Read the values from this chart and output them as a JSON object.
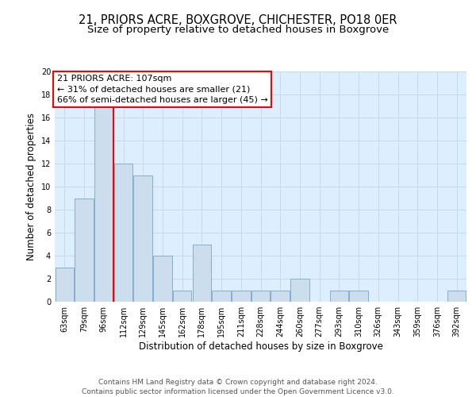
{
  "title1": "21, PRIORS ACRE, BOXGROVE, CHICHESTER, PO18 0ER",
  "title2": "Size of property relative to detached houses in Boxgrove",
  "xlabel": "Distribution of detached houses by size in Boxgrove",
  "ylabel": "Number of detached properties",
  "categories": [
    "63sqm",
    "79sqm",
    "96sqm",
    "112sqm",
    "129sqm",
    "145sqm",
    "162sqm",
    "178sqm",
    "195sqm",
    "211sqm",
    "228sqm",
    "244sqm",
    "260sqm",
    "277sqm",
    "293sqm",
    "310sqm",
    "326sqm",
    "343sqm",
    "359sqm",
    "376sqm",
    "392sqm"
  ],
  "values": [
    3,
    9,
    17,
    12,
    11,
    4,
    1,
    5,
    1,
    1,
    1,
    1,
    2,
    0,
    1,
    1,
    0,
    0,
    0,
    0,
    1
  ],
  "bar_color": "#ccdded",
  "bar_edge_color": "#85aece",
  "vline_index": 2.5,
  "vline_color": "red",
  "annotation_text": "21 PRIORS ACRE: 107sqm\n← 31% of detached houses are smaller (21)\n66% of semi-detached houses are larger (45) →",
  "annotation_box_color": "white",
  "annotation_box_edge_color": "red",
  "ylim": [
    0,
    20
  ],
  "yticks": [
    0,
    2,
    4,
    6,
    8,
    10,
    12,
    14,
    16,
    18,
    20
  ],
  "grid_color": "#c8d8e8",
  "background_color": "#ddeeff",
  "footer1": "Contains HM Land Registry data © Crown copyright and database right 2024.",
  "footer2": "Contains public sector information licensed under the Open Government Licence v3.0.",
  "title1_fontsize": 10.5,
  "title2_fontsize": 9.5,
  "xlabel_fontsize": 8.5,
  "ylabel_fontsize": 8.5,
  "tick_fontsize": 7,
  "footer_fontsize": 6.5,
  "annot_fontsize": 8
}
